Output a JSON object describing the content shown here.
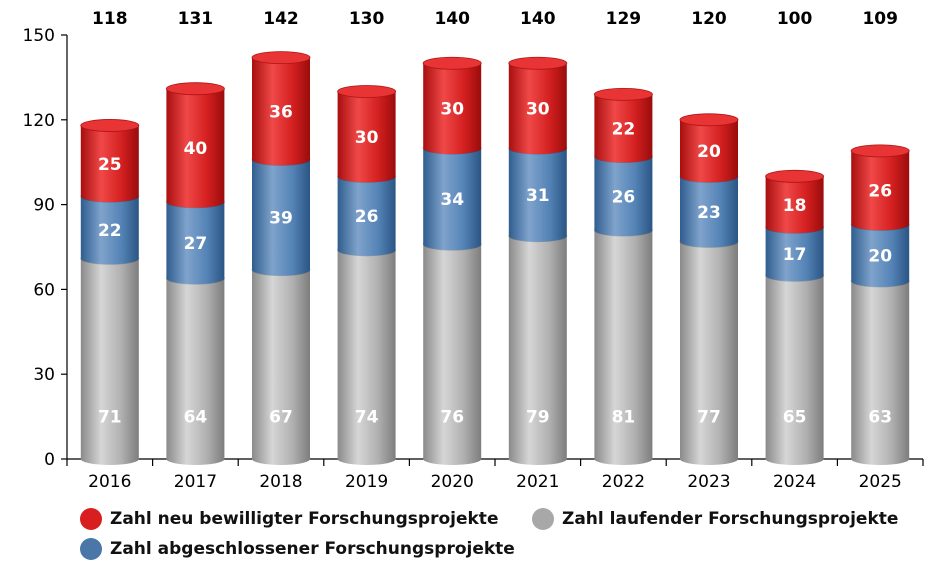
{
  "chart_data": {
    "type": "bar",
    "stacked": true,
    "style": "3d-cylinder",
    "categories": [
      "2016",
      "2017",
      "2018",
      "2019",
      "2020",
      "2021",
      "2022",
      "2023",
      "2024",
      "2025"
    ],
    "totals": [
      118,
      131,
      142,
      130,
      140,
      140,
      129,
      120,
      100,
      109
    ],
    "series": [
      {
        "name": "Zahl laufender Forschungsprojekte",
        "color": "#a8a8a8",
        "values": [
          71,
          64,
          67,
          74,
          76,
          79,
          81,
          77,
          65,
          63
        ]
      },
      {
        "name": "Zahl abgeschlossener Forschungsprojekte",
        "color": "#4a77a8",
        "values": [
          22,
          27,
          39,
          26,
          34,
          31,
          26,
          23,
          17,
          20
        ]
      },
      {
        "name": "Zahl neu bewilligter Forschungsprojekte",
        "color": "#d81e1e",
        "values": [
          25,
          40,
          36,
          30,
          30,
          30,
          22,
          20,
          18,
          26
        ]
      }
    ],
    "yticks": [
      "0",
      "30",
      "60",
      "90",
      "120",
      "150"
    ],
    "ylim": [
      0,
      150
    ],
    "grid": false,
    "legend_position": "bottom"
  }
}
